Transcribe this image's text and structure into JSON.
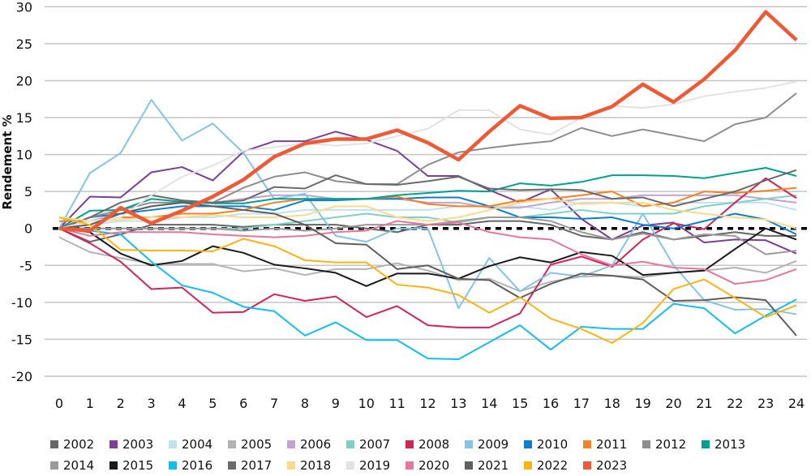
{
  "chart_data": {
    "type": "line",
    "title": "",
    "xlabel": "",
    "ylabel": "Rendement %",
    "xlim": [
      0,
      24
    ],
    "ylim": [
      -20,
      30
    ],
    "x": [
      0,
      1,
      2,
      3,
      4,
      5,
      6,
      7,
      8,
      9,
      10,
      11,
      12,
      13,
      14,
      15,
      16,
      17,
      18,
      19,
      20,
      21,
      22,
      23,
      24
    ],
    "x_ticks": [
      "0",
      "1",
      "2",
      "3",
      "4",
      "5",
      "6",
      "7",
      "8",
      "9",
      "10",
      "11",
      "12",
      "13",
      "14",
      "15",
      "16",
      "17",
      "18",
      "19",
      "20",
      "21",
      "22",
      "23",
      "24"
    ],
    "y_ticks": [
      "-20",
      "-15",
      "-10",
      "-5",
      "0",
      "5",
      "10",
      "15",
      "20",
      "25",
      "30"
    ],
    "y_tick_values": [
      -20,
      -15,
      -10,
      -5,
      0,
      5,
      10,
      15,
      20,
      25,
      30
    ],
    "grid": true,
    "zero_line": "dashed",
    "legend_position": "bottom",
    "series": [
      {
        "name": "2002",
        "color": "#666666",
        "values": [
          0,
          -1.8,
          -0.8,
          0.5,
          0.5,
          0.5,
          0.2,
          0.5,
          0.5,
          0.5,
          0,
          -0.5,
          0.5,
          0.5,
          1,
          1,
          0.5,
          -1,
          -1.5,
          -0.5,
          -1.5,
          -1,
          -0.5,
          -1,
          -1
        ]
      },
      {
        "name": "2003",
        "color": "#7b3f98",
        "values": [
          0,
          4.3,
          4.2,
          7.6,
          8.3,
          6.5,
          10.4,
          11.8,
          11.8,
          13.1,
          12,
          10.5,
          7.1,
          7.1,
          5.2,
          3.5,
          5.3,
          1.3,
          -1.5,
          0.4,
          0.8,
          -1.9,
          -1.5,
          -1.6,
          -3.4
        ]
      },
      {
        "name": "2004",
        "color": "#c0e0f4",
        "values": [
          0,
          0.5,
          1,
          1,
          1.5,
          1.5,
          2,
          2,
          2.5,
          2.5,
          2.5,
          2.5,
          2.5,
          3,
          3,
          3,
          2.5,
          3.5,
          3.5,
          3,
          3.5,
          3.5,
          3.5,
          3.5,
          2.5
        ]
      },
      {
        "name": "2005",
        "color": "#b3b3b3",
        "values": [
          -1.2,
          -3.2,
          -4,
          -4.8,
          -4.8,
          -4.8,
          -5.8,
          -5.4,
          -6.3,
          -5.5,
          -5.5,
          -4.7,
          -5.7,
          -7,
          -6.8,
          -8.5,
          -7.2,
          -6.5,
          -6.4,
          -6.6,
          -6,
          -5.7,
          -5.3,
          -6,
          -4.4
        ]
      },
      {
        "name": "2006",
        "color": "#c3a1d0",
        "values": [
          0,
          1,
          2,
          3,
          3.5,
          3.5,
          4,
          4.5,
          4.5,
          4,
          4,
          4,
          3.5,
          3.5,
          2.8,
          2.8,
          3.5,
          4,
          4,
          4.5,
          4.5,
          4.5,
          4.5,
          4,
          3.5
        ]
      },
      {
        "name": "2007",
        "color": "#7fd1c6",
        "values": [
          0,
          0,
          0,
          0,
          0,
          0,
          0,
          0.5,
          1,
          1.5,
          2,
          1.5,
          1.5,
          0.8,
          1.5,
          1.5,
          2,
          2.5,
          2,
          2,
          2,
          3,
          3.5,
          4,
          4.5
        ]
      },
      {
        "name": "2008",
        "color": "#d4235a",
        "values": [
          0,
          -2,
          -4.5,
          -8.2,
          -8,
          -11.4,
          -11.3,
          -8.9,
          -9.8,
          -9.2,
          -12,
          -10.5,
          -13.1,
          -13.4,
          -13.4,
          -11.5,
          -4.9,
          -3.8,
          -5.2,
          -1.5,
          0.7,
          -0.1,
          3.5,
          6.8,
          4.1
        ]
      },
      {
        "name": "2009",
        "color": "#85c4e8",
        "values": [
          0,
          7.5,
          10.2,
          17.4,
          11.9,
          14.2,
          10.2,
          4,
          4.7,
          -1,
          -1.8,
          0,
          0,
          -10.8,
          -4,
          -8.5,
          -6,
          -6.5,
          -5,
          2,
          -5,
          -9.7,
          -11,
          -10.9,
          -11.6
        ]
      },
      {
        "name": "2010",
        "color": "#0b7fcf",
        "values": [
          0,
          1.5,
          2,
          2.5,
          3,
          3,
          3,
          2.5,
          3.8,
          3.8,
          4,
          4,
          4.2,
          4.2,
          3,
          1.5,
          1.5,
          1.3,
          1.5,
          0.5,
          0,
          1,
          2,
          1.2,
          -0.8
        ]
      },
      {
        "name": "2011",
        "color": "#f58220",
        "values": [
          1,
          1,
          1.5,
          1.5,
          2,
          2,
          2.5,
          3.5,
          4,
          4,
          4,
          4.3,
          3.3,
          3,
          3,
          3.8,
          4,
          4.5,
          5,
          3,
          3.5,
          5,
          4.8,
          5.1,
          5.5
        ]
      },
      {
        "name": "2012",
        "color": "#8e8e8e",
        "values": [
          0,
          1.5,
          2.5,
          3.5,
          3.5,
          3.5,
          5.5,
          7,
          7.6,
          6.4,
          6,
          6,
          8.6,
          10.3,
          10.9,
          11.4,
          11.8,
          13.6,
          12.5,
          13.4,
          12.6,
          11.8,
          14.1,
          15,
          18.3
        ]
      },
      {
        "name": "2013",
        "color": "#00a193",
        "values": [
          0,
          2.4,
          2.5,
          4,
          3.6,
          3.4,
          3.4,
          4,
          4,
          4,
          4,
          4.5,
          4.8,
          5.1,
          5,
          6.1,
          5.8,
          6.3,
          7.2,
          7.2,
          7.1,
          6.8,
          7.5,
          8.2,
          7.1
        ]
      },
      {
        "name": "2014",
        "color": "#999999",
        "values": [
          0,
          0,
          0,
          0,
          0,
          0,
          -0.3,
          0,
          -0.3,
          0,
          0.5,
          0.5,
          0.5,
          1,
          1.5,
          1.5,
          1,
          -0.5,
          -1.5,
          -0.7,
          -1.5,
          -0.8,
          -1,
          -3.5,
          -3
        ]
      },
      {
        "name": "2015",
        "color": "#1a1a1a",
        "values": [
          0,
          -0.5,
          -3.4,
          -5,
          -4.4,
          -2.4,
          -3.3,
          -4.9,
          -5.4,
          -6,
          -7.8,
          -6.1,
          -6.1,
          -6.8,
          -5.1,
          -3.9,
          -4.6,
          -3.2,
          -3.7,
          -6.3,
          -6,
          -5.7,
          -2.8,
          0,
          -1.5
        ]
      },
      {
        "name": "2016",
        "color": "#14bdf0",
        "values": [
          0,
          -0.3,
          -0.8,
          -4.5,
          -7.7,
          -8.7,
          -10.6,
          -11.2,
          -14.5,
          -12.7,
          -15.1,
          -15.1,
          -17.6,
          -17.7,
          -15.4,
          -13.1,
          -16.4,
          -13.3,
          -13.6,
          -13.6,
          -10.2,
          -10.8,
          -14.2,
          -11.8,
          -9.6
        ]
      },
      {
        "name": "2017",
        "color": "#6b6b6b",
        "values": [
          0,
          1.5,
          3.5,
          4.5,
          3.8,
          3.5,
          3.8,
          5.6,
          5.4,
          7.2,
          6,
          5.9,
          6.4,
          7,
          5.4,
          5.2,
          5.3,
          5.2,
          4,
          4.2,
          3,
          4,
          5,
          6.5,
          7.9
        ]
      },
      {
        "name": "2018",
        "color": "#fdd98a",
        "values": [
          1.5,
          1,
          1.2,
          1.5,
          1.5,
          1.8,
          1.5,
          1.5,
          1.8,
          3,
          3,
          1.5,
          1,
          1.5,
          2.5,
          3.5,
          4,
          3.3,
          3.5,
          3.5,
          2.5,
          2,
          1.5,
          1.2,
          0
        ]
      },
      {
        "name": "2019",
        "color": "#e2e2e2",
        "values": [
          0,
          1,
          1.5,
          4.5,
          7,
          8.5,
          10.5,
          11,
          11.5,
          11.2,
          11.5,
          12.5,
          13.5,
          16,
          16,
          13.4,
          12.7,
          15,
          16.6,
          16.3,
          16.8,
          17.9,
          18.5,
          19,
          19.9
        ]
      },
      {
        "name": "2020",
        "color": "#e6779a",
        "values": [
          0,
          -1,
          -0.5,
          -0.5,
          -0.5,
          -0.8,
          -1,
          -1.2,
          -1,
          -0.5,
          -0.3,
          1,
          0.5,
          0.8,
          -0.5,
          -1.2,
          -1.5,
          -3.5,
          -5,
          -4.5,
          -5.3,
          -5.5,
          -7.5,
          -7,
          -5.5
        ]
      },
      {
        "name": "2021",
        "color": "#5e5e5e",
        "values": [
          0,
          0.5,
          2,
          3,
          3.5,
          3,
          2.5,
          2,
          0.5,
          -2,
          -2.2,
          -5.5,
          -5,
          -6.8,
          -7,
          -9.4,
          -7.5,
          -6.1,
          -6.4,
          -6.9,
          -9.8,
          -9.7,
          -9.3,
          -9.7,
          -14.5
        ]
      },
      {
        "name": "2022",
        "color": "#fbb414",
        "values": [
          1.5,
          0.5,
          -2.9,
          -3,
          -3,
          -3.1,
          -1.4,
          -2.4,
          -4.3,
          -4.6,
          -4.6,
          -7.6,
          -8,
          -9,
          -11.4,
          -9.3,
          -12.2,
          -13.6,
          -15.5,
          -12.8,
          -8.2,
          -6.9,
          -9.4,
          -12,
          -10.4
        ]
      },
      {
        "name": "2023",
        "color": "#ee5a35",
        "highlight": true,
        "values": [
          0,
          -0.3,
          2.8,
          0.7,
          2.4,
          4.3,
          6.6,
          9.7,
          11.5,
          12.1,
          12.1,
          13.3,
          11.6,
          9.3,
          13.1,
          16.6,
          14.9,
          15,
          16.5,
          19.5,
          17.1,
          20.2,
          24.1,
          29.3,
          25.5
        ]
      }
    ]
  }
}
